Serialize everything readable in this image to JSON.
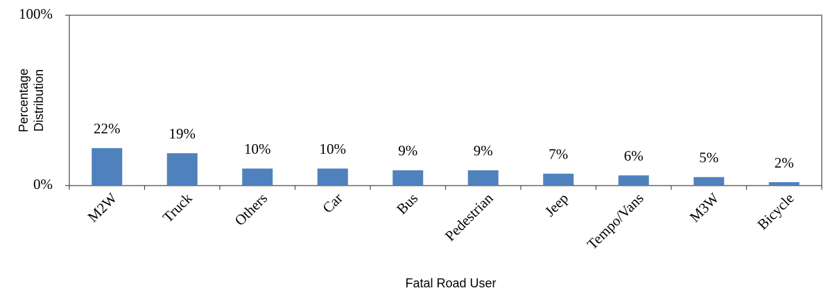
{
  "chart_data": {
    "type": "bar",
    "x_label": "Fatal Road User",
    "y_label": [
      "Percentage",
      "Distribution"
    ],
    "categories": [
      "M2W",
      "Truck",
      "Others",
      "Car",
      "Bus",
      "Pedestrian",
      "Jeep",
      "Tempo/Vans",
      "M3W",
      "Bicycle"
    ],
    "values": [
      22,
      19,
      10,
      10,
      9,
      9,
      7,
      6,
      5,
      2
    ],
    "value_labels": [
      "22%",
      "19%",
      "10%",
      "10%",
      "9%",
      "9%",
      "7%",
      "6%",
      "5%",
      "2%"
    ],
    "color": "#4f81bd",
    "ylim": [
      0,
      100
    ],
    "yticks": [
      {
        "value": 0,
        "label": "0%"
      },
      {
        "value": 100,
        "label": "100%"
      }
    ],
    "grid": false
  }
}
